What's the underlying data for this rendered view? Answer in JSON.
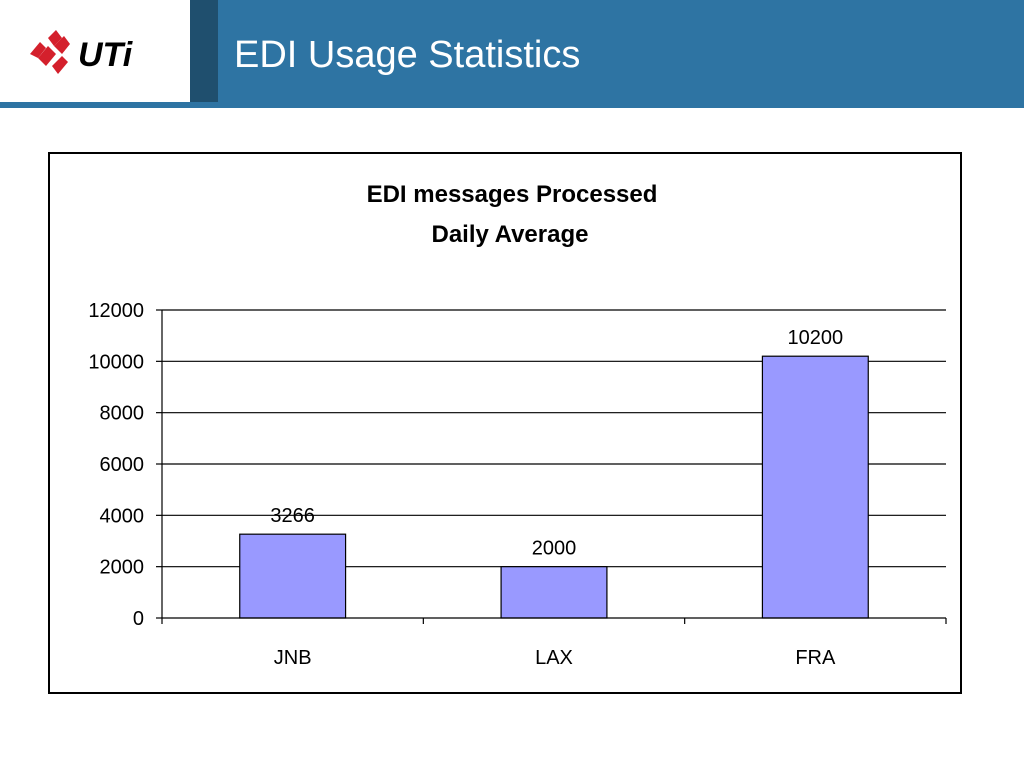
{
  "header": {
    "title": "EDI Usage Statistics",
    "logo_text": "UTi"
  },
  "colors": {
    "title_bar": "#2e74a3",
    "dark_strip": "#1f4f6e",
    "bar_fill": "#9999ff",
    "logo_red": "#d4202c"
  },
  "chart_data": {
    "type": "bar",
    "title": "EDI messages Processed",
    "subtitle": "Daily Average",
    "categories": [
      "JNB",
      "LAX",
      "FRA"
    ],
    "values": [
      3266,
      2000,
      10200
    ],
    "data_labels": [
      "3266",
      "2000",
      "10200"
    ],
    "xlabel": "",
    "ylabel": "",
    "ylim": [
      0,
      12000
    ],
    "yticks": [
      0,
      2000,
      4000,
      6000,
      8000,
      10000,
      12000
    ],
    "ytick_labels": [
      "0",
      "2000",
      "4000",
      "6000",
      "8000",
      "10000",
      "12000"
    ],
    "grid": true,
    "legend": "none"
  }
}
